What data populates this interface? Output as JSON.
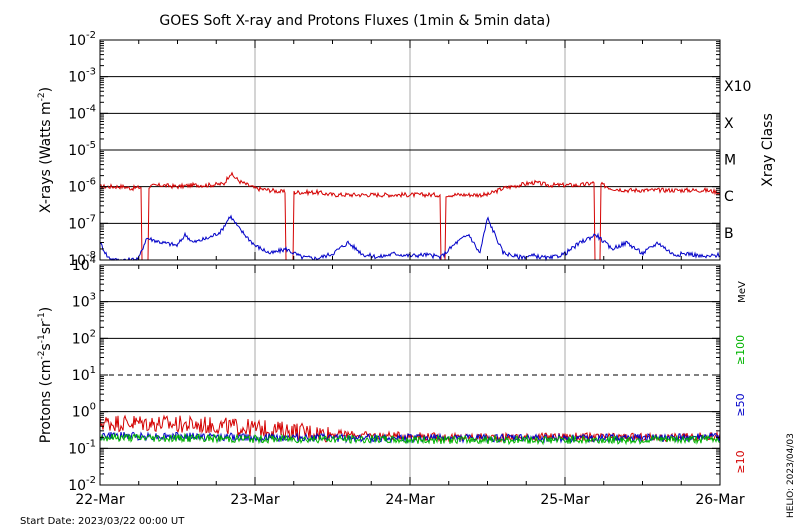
{
  "chart_data": {
    "type": "line",
    "title": "GOES Soft X-ray and Protons Fluxes   (1min & 5min data)",
    "start_date": "Start Date: 2023/03/22 00:00 UT",
    "stamp": "HELIO: 2023/04/03",
    "x_tick_labels": [
      "22-Mar",
      "23-Mar",
      "24-Mar",
      "25-Mar",
      "26-Mar"
    ],
    "xlim": [
      "2023-03-22T00:00",
      "2023-03-26T00:00"
    ],
    "panels": [
      {
        "id": "xray",
        "ylabel_main": "X-rays (Watts m",
        "ylabel_sup": "-2",
        "ylabel_end": ")",
        "scale": "log",
        "ylim": [
          1e-08,
          0.01
        ],
        "y_ticks": [
          {
            "base": "10",
            "exp": "-2"
          },
          {
            "base": "10",
            "exp": "-3"
          },
          {
            "base": "10",
            "exp": "-4"
          },
          {
            "base": "10",
            "exp": "-5"
          },
          {
            "base": "10",
            "exp": "-6"
          },
          {
            "base": "10",
            "exp": "-7"
          },
          {
            "base": "10",
            "exp": "-8"
          }
        ],
        "right_label": "Xray Class",
        "class_labels": [
          {
            "label": "X10",
            "value": 0.001
          },
          {
            "label": "X",
            "value": 0.0001
          },
          {
            "label": "M",
            "value": 1e-05
          },
          {
            "label": "C",
            "value": 1e-06
          },
          {
            "label": "B",
            "value": 1e-07
          }
        ],
        "series": [
          {
            "color": "#d40000",
            "x": [
              0.0,
              0.1,
              0.15,
              0.2,
              0.3,
              0.4,
              0.5,
              0.6,
              0.7,
              0.8,
              0.84,
              0.9,
              1.0,
              1.1,
              1.2,
              1.3,
              1.4,
              1.5,
              1.6,
              1.7,
              1.8,
              1.9,
              2.0,
              2.1,
              2.2,
              2.3,
              2.4,
              2.5,
              2.6,
              2.7,
              2.8,
              2.9,
              3.0,
              3.1,
              3.2,
              3.3,
              3.4,
              3.5,
              3.6,
              3.7,
              3.8,
              3.9,
              4.0
            ],
            "y": [
              1e-06,
              1e-06,
              1e-06,
              9e-07,
              1e-06,
              1.1e-06,
              1e-06,
              1.1e-06,
              1.1e-06,
              1.2e-06,
              2.3e-06,
              1.4e-06,
              9e-07,
              8e-07,
              7e-07,
              7e-07,
              7e-07,
              6e-07,
              6e-07,
              6e-07,
              6e-07,
              6e-07,
              6e-07,
              6e-07,
              6e-07,
              6e-07,
              6e-07,
              6e-07,
              9e-07,
              1.1e-06,
              1.3e-06,
              1.1e-06,
              1.1e-06,
              1.1e-06,
              1.3e-06,
              9e-07,
              8e-07,
              8e-07,
              8e-07,
              8e-07,
              8e-07,
              8e-07,
              7e-07
            ]
          },
          {
            "color": "#0000c8",
            "x": [
              0.0,
              0.05,
              0.1,
              0.2,
              0.25,
              0.3,
              0.4,
              0.5,
              0.55,
              0.6,
              0.7,
              0.78,
              0.84,
              0.9,
              1.0,
              1.1,
              1.2,
              1.3,
              1.4,
              1.5,
              1.6,
              1.7,
              1.8,
              1.9,
              2.0,
              2.1,
              2.2,
              2.3,
              2.38,
              2.45,
              2.5,
              2.6,
              2.7,
              2.8,
              2.9,
              3.0,
              3.1,
              3.2,
              3.3,
              3.4,
              3.5,
              3.6,
              3.7,
              3.8,
              3.9,
              4.0
            ],
            "y": [
              3e-08,
              1.2e-08,
              1e-08,
              1e-08,
              1.1e-08,
              4e-08,
              3e-08,
              2.5e-08,
              5e-08,
              3e-08,
              4e-08,
              6e-08,
              1.6e-07,
              7e-08,
              2.5e-08,
              1.5e-08,
              2e-08,
              1.2e-08,
              1.1e-08,
              1.5e-08,
              3e-08,
              1.4e-08,
              1.2e-08,
              1.5e-08,
              1.3e-08,
              1.4e-08,
              1.2e-08,
              3e-08,
              5e-08,
              1.5e-08,
              1.4e-07,
              1.6e-08,
              1.2e-08,
              1.3e-08,
              1.1e-08,
              1.5e-08,
              3e-08,
              5e-08,
              2e-08,
              3e-08,
              1.5e-08,
              3e-08,
              1.4e-08,
              1.5e-08,
              1.2e-08,
              1.4e-08
            ]
          }
        ],
        "dropouts": [
          0.27,
          0.31,
          1.2,
          1.25,
          2.2,
          2.23,
          3.19,
          3.23
        ]
      },
      {
        "id": "protons",
        "ylabel_main": "Protons (cm",
        "ylabel_sup1": "-2",
        "ylabel_mid": "s",
        "ylabel_sup2": "-1",
        "ylabel_mid2": "sr",
        "ylabel_sup3": "-1",
        "ylabel_end": ")",
        "scale": "log",
        "ylim": [
          0.01,
          10000
        ],
        "y_ticks": [
          {
            "base": "10",
            "exp": "4"
          },
          {
            "base": "10",
            "exp": "3"
          },
          {
            "base": "10",
            "exp": "2"
          },
          {
            "base": "10",
            "exp": "1"
          },
          {
            "base": "10",
            "exp": "0"
          },
          {
            "base": "10",
            "exp": "-1"
          },
          {
            "base": "10",
            "exp": "-2"
          }
        ],
        "threshold": 10,
        "unit_label": "MeV",
        "energy_labels": [
          {
            "label": "≥100",
            "color": "#00b400"
          },
          {
            "label": "≥50",
            "color": "#0000c8"
          },
          {
            "label": "≥10",
            "color": "#d40000"
          }
        ],
        "series": [
          {
            "color": "#d40000",
            "x": [
              0.0,
              0.25,
              0.5,
              0.75,
              1.0,
              1.25,
              1.5,
              1.75,
              2.0,
              2.25,
              2.5,
              2.75,
              3.0,
              3.25,
              3.5,
              3.75,
              4.0
            ],
            "y": [
              0.5,
              0.5,
              0.45,
              0.42,
              0.35,
              0.3,
              0.25,
              0.22,
              0.22,
              0.2,
              0.2,
              0.2,
              0.21,
              0.2,
              0.2,
              0.2,
              0.22
            ]
          },
          {
            "color": "#0000c8",
            "x": [
              0.0,
              0.5,
              1.0,
              1.5,
              2.0,
              2.5,
              3.0,
              3.5,
              4.0
            ],
            "y": [
              0.22,
              0.21,
              0.2,
              0.19,
              0.19,
              0.19,
              0.19,
              0.19,
              0.2
            ]
          },
          {
            "color": "#00b400",
            "x": [
              0.0,
              0.5,
              1.0,
              1.5,
              2.0,
              2.5,
              3.0,
              3.5,
              4.0
            ],
            "y": [
              0.2,
              0.19,
              0.18,
              0.18,
              0.17,
              0.17,
              0.17,
              0.17,
              0.18
            ]
          }
        ]
      }
    ]
  }
}
